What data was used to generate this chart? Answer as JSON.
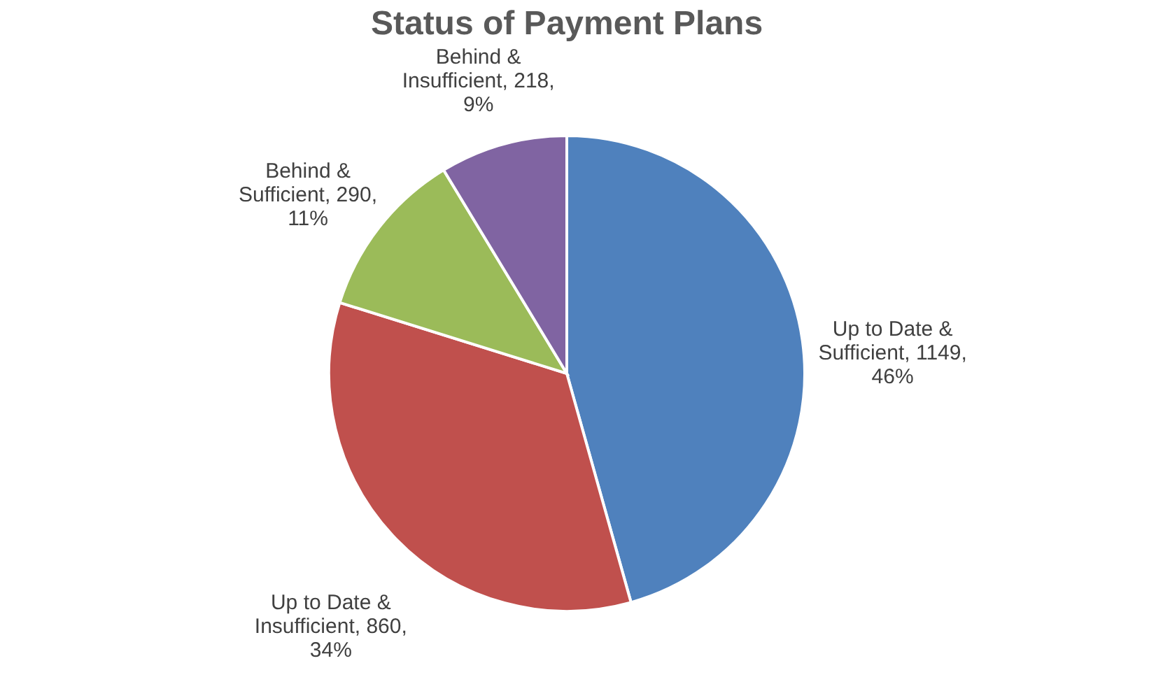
{
  "chart_data": {
    "type": "pie",
    "title": "Status of Payment Plans",
    "categories": [
      "Up to Date & Sufficient",
      "Up to Date & Insufficient",
      "Behind & Sufficient",
      "Behind & Insufficient"
    ],
    "values": [
      1149,
      860,
      290,
      218
    ],
    "value_labels": [
      "1149, 46%",
      "860, 34%",
      "290, 11%",
      "218, 9%"
    ],
    "colors": [
      "#4f81bd",
      "#c0504d",
      "#9bbb59",
      "#8064a2"
    ],
    "legend": false
  }
}
